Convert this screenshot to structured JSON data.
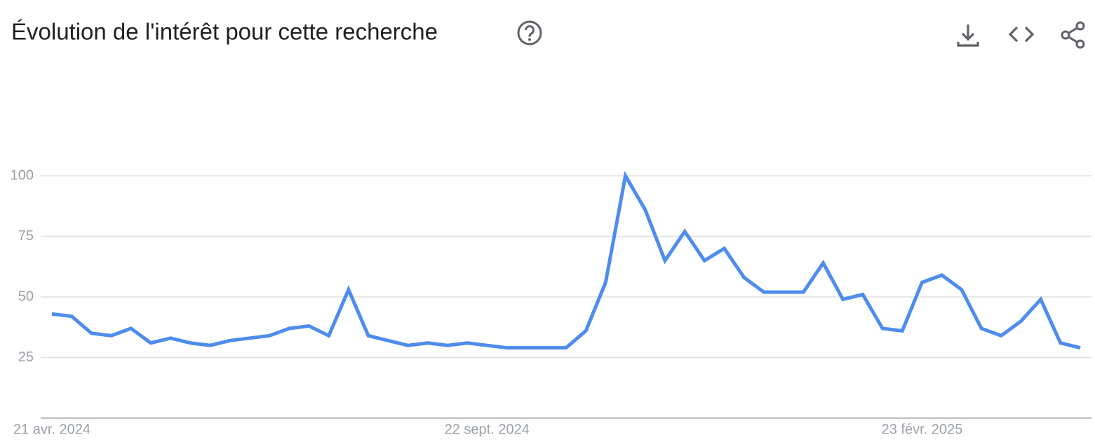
{
  "chart_data": {
    "type": "line",
    "title": "Évolution de l'intérêt pour cette recherche",
    "categories": [
      "21 avr. 2024",
      null,
      null,
      null,
      null,
      null,
      null,
      null,
      null,
      null,
      null,
      null,
      null,
      null,
      null,
      null,
      null,
      null,
      null,
      null,
      null,
      null,
      "22 sept. 2024",
      null,
      null,
      null,
      null,
      null,
      null,
      null,
      null,
      null,
      null,
      null,
      null,
      null,
      null,
      null,
      null,
      null,
      null,
      null,
      null,
      null,
      "23 févr. 2025",
      null,
      null,
      null,
      null,
      null,
      null,
      null,
      null
    ],
    "series": [
      {
        "color": "#4e8ced",
        "values": [
          43,
          42,
          35,
          34,
          37,
          31,
          33,
          31,
          30,
          32,
          33,
          34,
          37,
          38,
          34,
          53,
          34,
          32,
          30,
          31,
          30,
          31,
          30,
          29,
          29,
          29,
          29,
          36,
          56,
          100,
          86,
          65,
          77,
          65,
          70,
          58,
          52,
          52,
          52,
          64,
          49,
          51,
          37,
          36,
          56,
          59,
          53,
          37,
          34,
          40,
          49,
          31,
          29
        ]
      }
    ],
    "ylim": [
      0,
      100
    ],
    "yticks": [
      25,
      50,
      75,
      100
    ],
    "grid": true
  }
}
